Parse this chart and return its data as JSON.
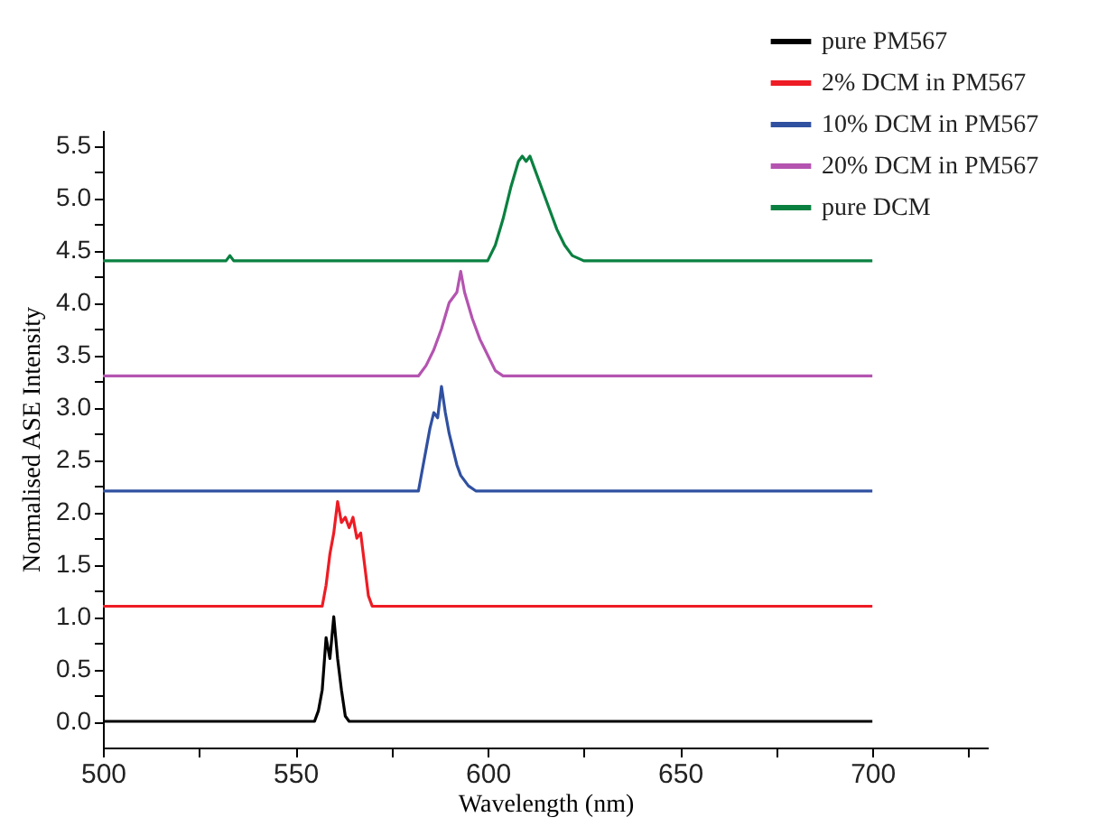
{
  "chart_data": {
    "type": "line",
    "xlabel": "Wavelength (nm)",
    "ylabel": "Normalised ASE Intensity",
    "xlim": [
      500,
      730
    ],
    "ylim": [
      -0.25,
      5.65
    ],
    "xticks": [
      500,
      {
        "value": 525,
        "label": null
      },
      550,
      {
        "value": 575,
        "label": null
      },
      600,
      {
        "value": 625,
        "label": null
      },
      650,
      {
        "value": 675,
        "label": null
      },
      700,
      {
        "value": 725,
        "label": null
      }
    ],
    "yticks": [
      {
        "value": 0,
        "label": "0.0"
      },
      {
        "value": 0.25,
        "label": null
      },
      {
        "value": 0.5,
        "label": "0.5"
      },
      {
        "value": 0.75,
        "label": null
      },
      {
        "value": 1,
        "label": "1.0"
      },
      {
        "value": 1.25,
        "label": null
      },
      {
        "value": 1.5,
        "label": "1.5"
      },
      {
        "value": 1.75,
        "label": null
      },
      {
        "value": 2,
        "label": "2.0"
      },
      {
        "value": 2.25,
        "label": null
      },
      {
        "value": 2.5,
        "label": "2.5"
      },
      {
        "value": 2.75,
        "label": null
      },
      {
        "value": 3,
        "label": "3.0"
      },
      {
        "value": 3.25,
        "label": null
      },
      {
        "value": 3.5,
        "label": "3.5"
      },
      {
        "value": 3.75,
        "label": null
      },
      {
        "value": 4,
        "label": "4.0"
      },
      {
        "value": 4.25,
        "label": null
      },
      {
        "value": 4.5,
        "label": "4.5"
      },
      {
        "value": 4.75,
        "label": null
      },
      {
        "value": 5,
        "label": "5.0"
      },
      {
        "value": 5.25,
        "label": null
      },
      {
        "value": 5.5,
        "label": "5.5"
      }
    ],
    "legend": "top right",
    "grid": false,
    "marker": "none",
    "line_style": "solid",
    "series": [
      {
        "name": "pure PM567",
        "color": "#000000",
        "x": [
          500,
          555,
          556,
          557,
          558,
          559,
          560,
          561,
          562,
          563,
          564,
          700
        ],
        "values": [
          0,
          0,
          0.1,
          0.3,
          0.8,
          0.6,
          1.0,
          0.6,
          0.3,
          0.05,
          0,
          0
        ]
      },
      {
        "name": "2% DCM in PM567",
        "color": "#ee1c24",
        "x": [
          500,
          557,
          558,
          559,
          560,
          561,
          562,
          563,
          564,
          565,
          566,
          567,
          568,
          569,
          570,
          700
        ],
        "values": [
          1.1,
          1.1,
          1.3,
          1.6,
          1.8,
          2.1,
          1.9,
          1.95,
          1.85,
          1.95,
          1.75,
          1.8,
          1.5,
          1.2,
          1.1,
          1.1
        ]
      },
      {
        "name": "10% DCM in PM567",
        "color": "#3050a0",
        "x": [
          500,
          582,
          583,
          584,
          585,
          586,
          587,
          588,
          589,
          590,
          591,
          592,
          593,
          595,
          597,
          700
        ],
        "values": [
          2.2,
          2.2,
          2.4,
          2.6,
          2.8,
          2.95,
          2.9,
          3.2,
          2.95,
          2.75,
          2.6,
          2.45,
          2.35,
          2.25,
          2.2,
          2.2
        ]
      },
      {
        "name": "20% DCM in PM567",
        "color": "#b454b0",
        "x": [
          500,
          582,
          584,
          586,
          588,
          590,
          592,
          593,
          594,
          596,
          598,
          600,
          602,
          604,
          700
        ],
        "values": [
          3.3,
          3.3,
          3.4,
          3.55,
          3.75,
          4.0,
          4.1,
          4.3,
          4.1,
          3.85,
          3.65,
          3.5,
          3.35,
          3.3,
          3.3
        ]
      },
      {
        "name": "pure DCM",
        "color": "#0a8040",
        "x": [
          500,
          532,
          533,
          534,
          600,
          602,
          604,
          606,
          608,
          609,
          610,
          611,
          612,
          614,
          616,
          618,
          620,
          622,
          625,
          700
        ],
        "values": [
          4.4,
          4.4,
          4.45,
          4.4,
          4.4,
          4.55,
          4.8,
          5.1,
          5.35,
          5.4,
          5.35,
          5.4,
          5.3,
          5.1,
          4.9,
          4.7,
          4.55,
          4.45,
          4.4,
          4.4
        ]
      }
    ]
  }
}
